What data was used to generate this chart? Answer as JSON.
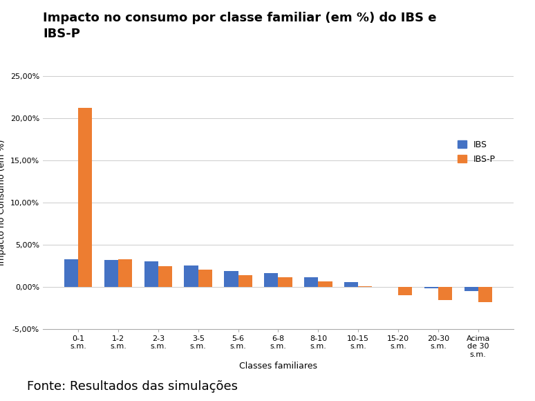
{
  "title": "Impacto no consumo por classe familiar (em %) do IBS e\nIBS-P",
  "xlabel": "Classes familiares",
  "ylabel": "Impacto no Consumo (em %)",
  "categories": [
    "0-1\ns.m.",
    "1-2\ns.m.",
    "2-3\ns.m.",
    "3-5\ns.m.",
    "5-6\ns.m.",
    "6-8\ns.m.",
    "8-10\ns.m.",
    "10-15\ns.m.",
    "15-20\ns.m.",
    "20-30\ns.m.",
    "Acima\nde 30\ns.m."
  ],
  "IBS": [
    3.3,
    3.2,
    3.0,
    2.5,
    1.9,
    1.6,
    1.1,
    0.55,
    0.0,
    -0.2,
    -0.5
  ],
  "IBSP": [
    21.2,
    3.3,
    2.4,
    2.0,
    1.35,
    1.1,
    0.65,
    0.05,
    -1.0,
    -1.6,
    -1.8
  ],
  "color_IBS": "#4472C4",
  "color_IBSP": "#ED7D31",
  "ylim_min": -5.0,
  "ylim_max": 25.0,
  "yticks": [
    -5.0,
    0.0,
    5.0,
    10.0,
    15.0,
    20.0,
    25.0
  ],
  "ytick_labels": [
    "-5,00%",
    "0,00%",
    "5,00%",
    "10,00%",
    "15,00%",
    "20,00%",
    "25,00%"
  ],
  "bg_color": "#FFFFFF",
  "plot_bg_color": "#FFFFFF",
  "legend_labels": [
    "IBS",
    "IBS-P"
  ],
  "source_text": "Fonte: Resultados das simulações",
  "title_fontsize": 13,
  "axis_fontsize": 9,
  "tick_fontsize": 8,
  "source_fontsize": 13
}
